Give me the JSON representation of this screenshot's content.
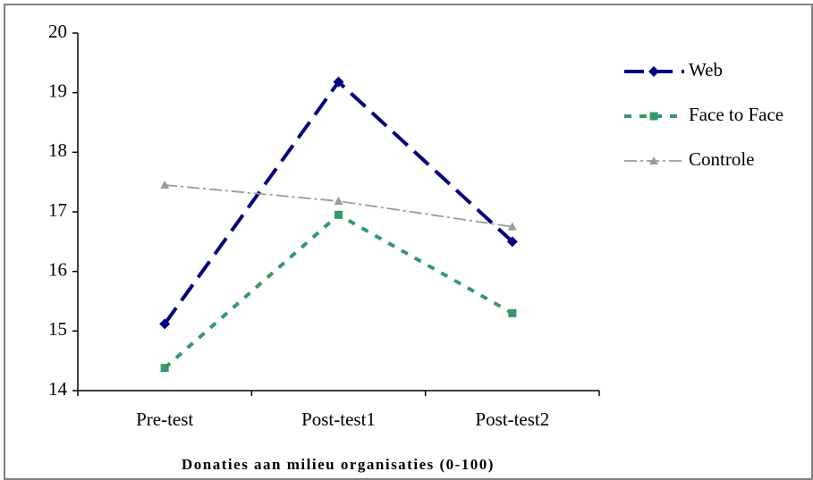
{
  "chart_data": {
    "type": "line",
    "x_label": "Donaties aan milieu organisaties (0-100)",
    "categories": [
      "Pre-test",
      "Post-test1",
      "Post-test2"
    ],
    "series": [
      {
        "name": "Web",
        "color": "#000080",
        "marker": "diamond",
        "values": [
          15.12,
          19.18,
          16.5
        ]
      },
      {
        "name": "Face to Face",
        "color": "#339966",
        "marker": "square",
        "values": [
          14.38,
          16.95,
          15.3
        ]
      },
      {
        "name": "Controle",
        "color": "#999999",
        "marker": "triangle",
        "values": [
          17.45,
          17.18,
          16.75
        ]
      }
    ],
    "ylim": [
      14,
      20
    ],
    "yticks": [
      14,
      15,
      16,
      17,
      18,
      19,
      20
    ],
    "grid": false,
    "legend": "right"
  }
}
